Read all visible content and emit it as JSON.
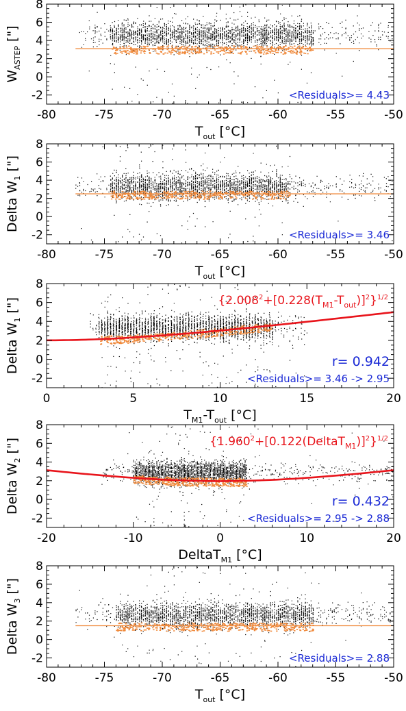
{
  "chart_data": [
    {
      "type": "scatter",
      "x": [
        -80,
        -50
      ],
      "xlim": [
        -80,
        -50
      ],
      "ylim": [
        -3,
        8
      ],
      "xticks": [
        "-80",
        "-75",
        "-70",
        "-65",
        "-60",
        "-55",
        "-50"
      ],
      "yticks": [
        "-2",
        "0",
        "2",
        "4",
        "6",
        "8"
      ],
      "xlabel": "T",
      "xlabel_sub": "out",
      "xlabel_unit": " [°C]",
      "ylabel": "W",
      "ylabel_sub": "ASTEP",
      "ylabel_unit": " [\"]",
      "residuals_label": "<Residuals>=  4.43",
      "scatter": {
        "x_range": [
          -77.5,
          -50
        ],
        "dense_x": [
          -74.5,
          -57
        ],
        "y_center": 4.6,
        "y_spread": 1.3,
        "seed": 11
      },
      "fit": {
        "kind": "flat",
        "y": 3.1,
        "x_range": [
          -77.5,
          -50
        ]
      },
      "fit_color": "#f08a3c"
    },
    {
      "type": "scatter",
      "x": [
        -80,
        -50
      ],
      "xlim": [
        -80,
        -50
      ],
      "ylim": [
        -3,
        8
      ],
      "xticks": [
        "-80",
        "-75",
        "-70",
        "-65",
        "-60",
        "-55",
        "-50"
      ],
      "yticks": [
        "-2",
        "0",
        "2",
        "4",
        "6",
        "8"
      ],
      "xlabel": "T",
      "xlabel_sub": "out",
      "xlabel_unit": " [°C]",
      "ylabel": "Delta W",
      "ylabel_sub": "1",
      "ylabel_unit": " [\"]",
      "residuals_label": "<Residuals>=  3.46",
      "scatter": {
        "x_range": [
          -77.5,
          -50
        ],
        "dense_x": [
          -74.5,
          -59
        ],
        "y_center": 3.3,
        "y_spread": 1.3,
        "seed": 23
      },
      "fit": {
        "kind": "flat",
        "y": 2.5,
        "x_range": [
          -77.5,
          -50
        ]
      },
      "fit_color": "#f08a3c"
    },
    {
      "type": "scatter",
      "x": [
        0,
        20
      ],
      "xlim": [
        0,
        20
      ],
      "ylim": [
        -3,
        8
      ],
      "xticks": [
        "0",
        "5",
        "10",
        "15",
        "20"
      ],
      "yticks": [
        "-2",
        "0",
        "2",
        "4",
        "6",
        "8"
      ],
      "xlabel": "T",
      "xlabel_sub": "M1",
      "xlabel_mid": "-T",
      "xlabel_sub2": "out",
      "xlabel_unit": " [°C]",
      "ylabel": "Delta W",
      "ylabel_sub": "1",
      "ylabel_unit": " [\"]",
      "r_label": "r= 0.942",
      "residuals_label": "<Residuals>=  3.46 ->  2.95",
      "formula": {
        "part1": "{2.008",
        "sup1": "2",
        "part2": "+[0.228(T",
        "sub1": "M1",
        "part3": "-T",
        "sub2": "out",
        "part4": ")]",
        "sup2": "2",
        "part5": "}",
        "sup3": "1/2"
      },
      "scatter": {
        "x_range": [
          2.5,
          15
        ],
        "dense_x": [
          3,
          13
        ],
        "y_center": 3.4,
        "y_spread": 1.2,
        "seed": 37
      },
      "fit": {
        "kind": "quad",
        "a": 2.008,
        "b": 0.228,
        "x_range": [
          0,
          20
        ]
      },
      "fit_color": "#e8141b"
    },
    {
      "type": "scatter",
      "x": [
        -20,
        20
      ],
      "xlim": [
        -20,
        20
      ],
      "ylim": [
        -3,
        8
      ],
      "xticks": [
        "-20",
        "-10",
        "0",
        "10",
        "20"
      ],
      "yticks": [
        "-2",
        "0",
        "2",
        "4",
        "6",
        "8"
      ],
      "xlabel": "DeltaT",
      "xlabel_sub": "M1",
      "xlabel_unit": " [°C]",
      "ylabel": "Delta W",
      "ylabel_sub": "2",
      "ylabel_unit": " [\"]",
      "r_label": "r= 0.432",
      "residuals_label": "<Residuals>=  2.95 ->  2.88",
      "formula": {
        "part1": "{1.960",
        "sup1": "2",
        "part2": "+[0.122(DeltaT",
        "sub1": "M1",
        "part3": ")]",
        "sup2": "2",
        "part4": "}",
        "sup3": "1/2"
      },
      "scatter": {
        "x_range": [
          -14,
          20
        ],
        "dense_x": [
          -10,
          3
        ],
        "y_center": 2.9,
        "y_spread": 1.1,
        "seed": 51
      },
      "fit": {
        "kind": "quad",
        "a": 1.96,
        "b": 0.122,
        "x_range": [
          -20,
          20
        ]
      },
      "fit_color": "#e8141b"
    },
    {
      "type": "scatter",
      "x": [
        -80,
        -50
      ],
      "xlim": [
        -80,
        -50
      ],
      "ylim": [
        -3,
        8
      ],
      "xticks": [
        "-80",
        "-75",
        "-70",
        "-65",
        "-60",
        "-55",
        "-50"
      ],
      "yticks": [
        "-2",
        "0",
        "2",
        "4",
        "6",
        "8"
      ],
      "xlabel": "T",
      "xlabel_sub": "out",
      "xlabel_unit": " [°C]",
      "ylabel": "Delta W",
      "ylabel_sub": "3",
      "ylabel_unit": " [\"]",
      "residuals_label": "<Residuals>=  2.88",
      "scatter": {
        "x_range": [
          -77.5,
          -50
        ],
        "dense_x": [
          -74,
          -57
        ],
        "y_center": 2.7,
        "y_spread": 1.2,
        "seed": 67
      },
      "fit": {
        "kind": "flat",
        "y": 1.5,
        "x_range": [
          -77.5,
          -50
        ]
      },
      "fit_color": "#f08a3c"
    }
  ]
}
